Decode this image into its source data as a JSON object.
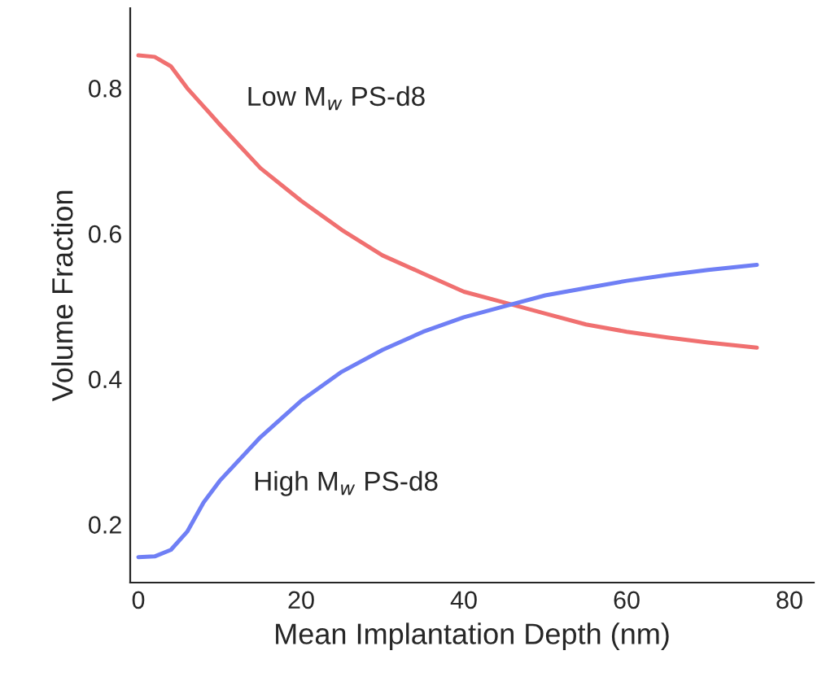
{
  "chart_data": {
    "type": "line",
    "xlabel": "Mean Implantation Depth (nm)",
    "ylabel": "Volume Fraction",
    "xlim": [
      -1,
      83
    ],
    "ylim": [
      0.12,
      0.91
    ],
    "xticks": [
      0,
      20,
      40,
      60,
      80
    ],
    "yticks": [
      0.2,
      0.4,
      0.6,
      0.8
    ],
    "grid": false,
    "legend": false,
    "series": [
      {
        "name": "Low M$_{w}$ PS-d8",
        "color": "#f07070",
        "x": [
          0,
          2,
          4,
          6,
          8,
          10,
          15,
          20,
          25,
          30,
          35,
          40,
          45,
          50,
          55,
          60,
          65,
          70,
          76
        ],
        "values": [
          0.845,
          0.843,
          0.83,
          0.8,
          0.775,
          0.75,
          0.69,
          0.645,
          0.605,
          0.57,
          0.545,
          0.52,
          0.505,
          0.49,
          0.475,
          0.465,
          0.457,
          0.45,
          0.443
        ]
      },
      {
        "name": "High M$_{w}$ PS-d8",
        "color": "#6f7ff5",
        "x": [
          0,
          2,
          4,
          6,
          8,
          10,
          15,
          20,
          25,
          30,
          35,
          40,
          45,
          50,
          55,
          60,
          65,
          70,
          76
        ],
        "values": [
          0.155,
          0.156,
          0.165,
          0.19,
          0.23,
          0.26,
          0.32,
          0.37,
          0.41,
          0.44,
          0.465,
          0.485,
          0.5,
          0.515,
          0.525,
          0.535,
          0.543,
          0.55,
          0.557
        ]
      }
    ]
  }
}
